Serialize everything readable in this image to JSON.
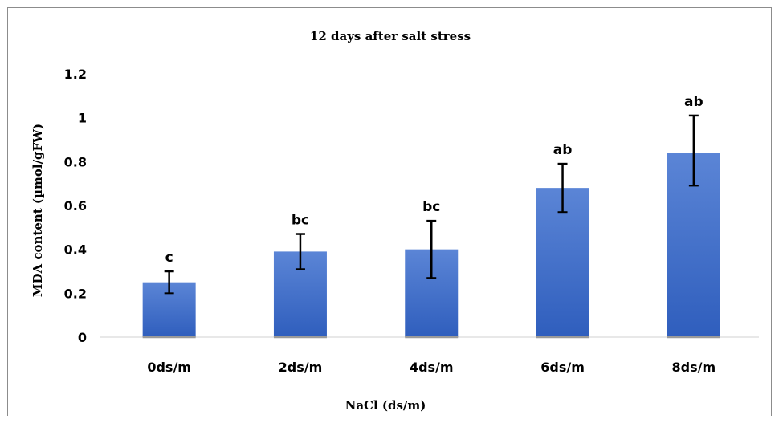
{
  "chart_data": {
    "type": "bar",
    "title": "12 days after salt stress",
    "xlabel": "NaCl (ds/m)",
    "ylabel": "MDA content (µmol/gFW)",
    "categories": [
      "0ds/m",
      "2ds/m",
      "4ds/m",
      "6ds/m",
      "8ds/m"
    ],
    "values": [
      0.25,
      0.39,
      0.4,
      0.68,
      0.84
    ],
    "error_upper": [
      0.05,
      0.08,
      0.13,
      0.11,
      0.17
    ],
    "error_lower": [
      0.05,
      0.08,
      0.13,
      0.11,
      0.15
    ],
    "significance_labels": [
      "c",
      "bc",
      "bc",
      "ab",
      "ab"
    ],
    "ylim": [
      0,
      1.2
    ],
    "yticks": [
      "0",
      "0.2",
      "0.4",
      "0.6",
      "0.8",
      "1",
      "1.2"
    ],
    "grid": false,
    "bar_color_top": "#5b85d6",
    "bar_color_bottom": "#2f5ebd"
  }
}
